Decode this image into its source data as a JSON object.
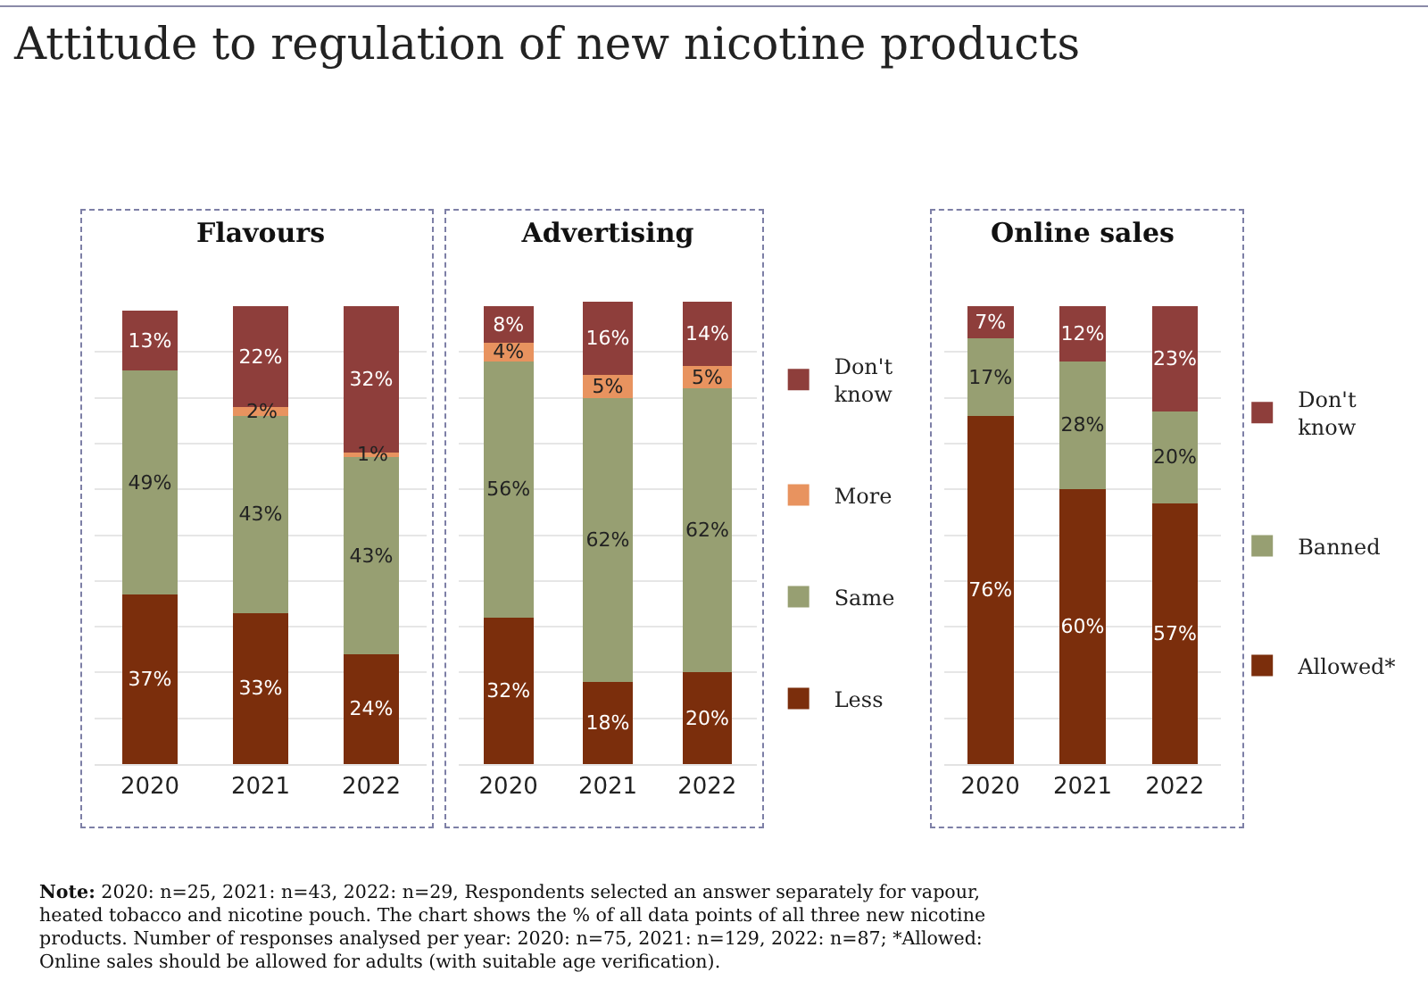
{
  "chart_data": [
    {
      "type": "bar",
      "title": "Attitude to regulation of new nicotine products",
      "subtitle": "Flavours",
      "categories": [
        "2020",
        "2021",
        "2022"
      ],
      "stacked": true,
      "ylim": [
        0,
        101
      ],
      "yticks": [
        {
          "value": 0,
          "label": null
        },
        {
          "value": 10,
          "label": null
        },
        {
          "value": 20,
          "label": null
        },
        {
          "value": 30,
          "label": null
        },
        {
          "value": 40,
          "label": null
        },
        {
          "value": 50,
          "label": null
        },
        {
          "value": 60,
          "label": null
        },
        {
          "value": 70,
          "label": null
        },
        {
          "value": 80,
          "label": null
        },
        {
          "value": 90,
          "label": null
        }
      ],
      "grid": "y",
      "tick_labels": "x",
      "legend": false,
      "series": [
        {
          "color": "#7b2e0c",
          "values": [
            37,
            33,
            24
          ],
          "value_labels": [
            "37%",
            "33%",
            "24%"
          ]
        },
        {
          "color": "#979f72",
          "values": [
            49,
            43,
            43
          ],
          "value_labels": [
            "49%",
            "43%",
            "43%"
          ]
        },
        {
          "color": "#e8935f",
          "values": [
            0,
            2,
            1
          ],
          "value_labels": [
            null,
            "2%",
            "1%"
          ]
        },
        {
          "color": "#8e3e3b",
          "values": [
            13,
            22,
            32
          ],
          "value_labels": [
            "13%",
            "22%",
            "32%"
          ]
        }
      ],
      "annotations": [
        "Note: 2020: n=25, 2021: n=43, 2022: n=29, Respondents selected an answer separately for vapour, heated tobacco and nicotine pouch. The chart shows the % of all data points of all three new nicotine products. Number of responses analysed per year: 2020: n=75, 2021: n=129, 2022: n=87; *Allowed: Online sales should be allowed for adults (with suitable age verification)."
      ]
    },
    {
      "type": "bar",
      "title": "Advertising",
      "categories": [
        "2020",
        "2021",
        "2022"
      ],
      "stacked": true,
      "ylim": [
        0,
        101
      ],
      "yticks": [
        {
          "value": 0,
          "label": null
        },
        {
          "value": 10,
          "label": null
        },
        {
          "value": 20,
          "label": null
        },
        {
          "value": 30,
          "label": null
        },
        {
          "value": 40,
          "label": null
        },
        {
          "value": 50,
          "label": null
        },
        {
          "value": 60,
          "label": null
        },
        {
          "value": 70,
          "label": null
        },
        {
          "value": 80,
          "label": null
        },
        {
          "value": 90,
          "label": null
        }
      ],
      "grid": "y",
      "tick_labels": "x",
      "legend": "right",
      "series": [
        {
          "name": "Less",
          "color": "#7b2e0c",
          "values": [
            32,
            18,
            20
          ],
          "value_labels": [
            "32%",
            "18%",
            "20%"
          ]
        },
        {
          "name": "Same",
          "color": "#979f72",
          "values": [
            56,
            62,
            62
          ],
          "value_labels": [
            "56%",
            "62%",
            "62%"
          ]
        },
        {
          "name": "More",
          "color": "#e8935f",
          "values": [
            4,
            5,
            5
          ],
          "value_labels": [
            "4%",
            "5%",
            "5%"
          ]
        },
        {
          "name": "Don't know",
          "color": "#8e3e3b",
          "values": [
            8,
            16,
            14
          ],
          "value_labels": [
            "8%",
            "16%",
            "14%"
          ]
        }
      ]
    },
    {
      "type": "bar",
      "title": "Online sales",
      "categories": [
        "2020",
        "2021",
        "2022"
      ],
      "stacked": true,
      "ylim": [
        0,
        101
      ],
      "yticks": [
        {
          "value": 0,
          "label": null
        },
        {
          "value": 10,
          "label": null
        },
        {
          "value": 20,
          "label": null
        },
        {
          "value": 30,
          "label": null
        },
        {
          "value": 40,
          "label": null
        },
        {
          "value": 50,
          "label": null
        },
        {
          "value": 60,
          "label": null
        },
        {
          "value": 70,
          "label": null
        },
        {
          "value": 80,
          "label": null
        },
        {
          "value": 90,
          "label": null
        }
      ],
      "grid": "y",
      "tick_labels": "x",
      "legend": "right",
      "series": [
        {
          "name": "Allowed*",
          "color": "#7b2e0c",
          "values": [
            76,
            60,
            57
          ],
          "value_labels": [
            "76%",
            "60%",
            "57%"
          ]
        },
        {
          "name": "Banned",
          "color": "#979f72",
          "values": [
            17,
            28,
            20
          ],
          "value_labels": [
            "17%",
            "28%",
            "20%"
          ]
        },
        {
          "name": "Don't know",
          "color": "#8e3e3b",
          "values": [
            7,
            12,
            23
          ],
          "value_labels": [
            "7%",
            "12%",
            "23%"
          ]
        }
      ]
    }
  ]
}
